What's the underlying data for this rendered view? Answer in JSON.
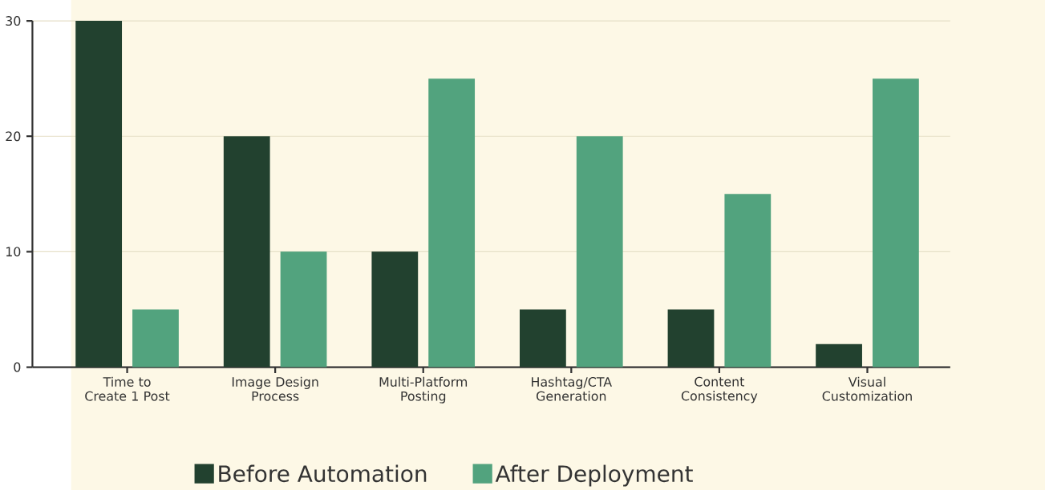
{
  "chart_data": {
    "type": "bar",
    "categories": [
      "Time to Create 1 Post",
      "Image Design Process",
      "Multi-Platform Posting",
      "Hashtag/CTA Generation",
      "Content Consistency",
      "Visual Customization"
    ],
    "series": [
      {
        "name": "Before Automation",
        "color": "#22412f",
        "values": [
          30,
          20,
          10,
          5,
          5,
          2
        ]
      },
      {
        "name": "After Deployment",
        "color": "#52a37e",
        "values": [
          5,
          10,
          25,
          20,
          15,
          25
        ]
      }
    ],
    "ylim": [
      0,
      30
    ],
    "yticks": [
      0,
      10,
      20,
      30
    ],
    "grid": "y",
    "legend": "bottom"
  }
}
